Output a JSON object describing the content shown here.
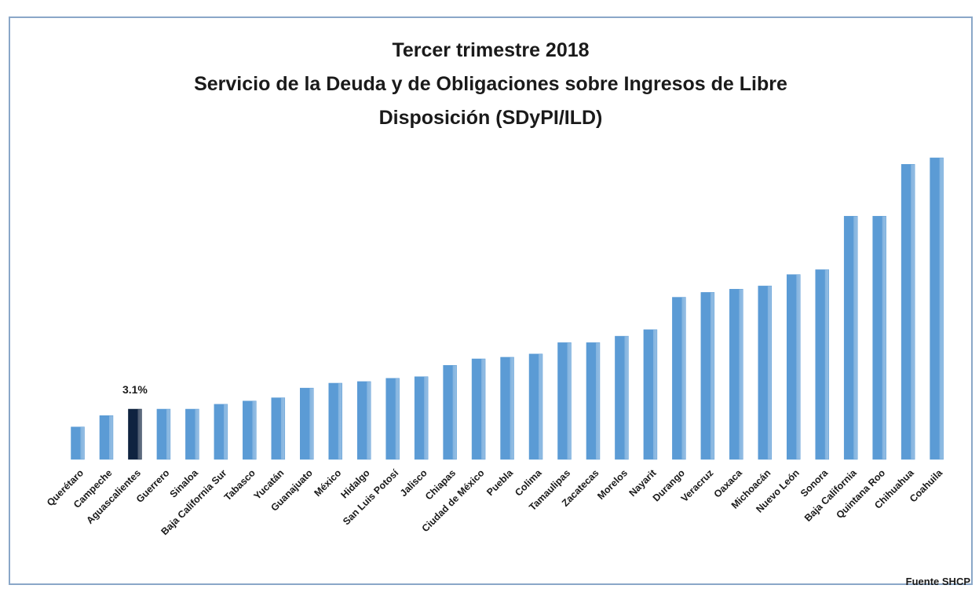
{
  "chart_data": {
    "type": "bar",
    "title": [
      "Tercer trimestre 2018",
      "Servicio de la Deuda y de Obligaciones sobre Ingresos de Libre",
      "Disposición (SDyPI/ILD)"
    ],
    "categories": [
      "Querétaro",
      "Campeche",
      "Aguascalientes",
      "Guerrero",
      "Sinaloa",
      "Baja California Sur",
      "Tabasco",
      "Yucatán",
      "Guanajuato",
      "México",
      "Hidalgo",
      "San Luis Potosí",
      "Jalisco",
      "Chiapas",
      "Ciudad de México",
      "Puebla",
      "Colima",
      "Tamaulipas",
      "Zacatecas",
      "Morelos",
      "Nayarit",
      "Durango",
      "Veracruz",
      "Oaxaca",
      "Michoacán",
      "Nuevo León",
      "Sonora",
      "Baja California",
      "Quintana Roo",
      "Chihuahua",
      "Coahuila"
    ],
    "values": [
      2.0,
      2.7,
      3.1,
      3.1,
      3.1,
      3.4,
      3.6,
      3.8,
      4.4,
      4.7,
      4.8,
      5.0,
      5.1,
      5.8,
      6.2,
      6.3,
      6.5,
      7.2,
      7.2,
      7.6,
      8.0,
      10.0,
      10.3,
      10.5,
      10.7,
      11.4,
      11.7,
      15.0,
      15.0,
      18.2,
      18.6
    ],
    "value_labels": [
      null,
      null,
      "3.1%",
      null,
      null,
      null,
      null,
      null,
      null,
      null,
      null,
      null,
      null,
      null,
      null,
      null,
      null,
      null,
      null,
      null,
      null,
      null,
      null,
      null,
      null,
      null,
      null,
      null,
      null,
      null,
      null
    ],
    "colors": [
      "#5b9bd5",
      "#5b9bd5",
      "#0f2340",
      "#5b9bd5",
      "#5b9bd5",
      "#5b9bd5",
      "#5b9bd5",
      "#5b9bd5",
      "#5b9bd5",
      "#5b9bd5",
      "#5b9bd5",
      "#5b9bd5",
      "#5b9bd5",
      "#5b9bd5",
      "#5b9bd5",
      "#5b9bd5",
      "#5b9bd5",
      "#5b9bd5",
      "#5b9bd5",
      "#5b9bd5",
      "#5b9bd5",
      "#5b9bd5",
      "#5b9bd5",
      "#5b9bd5",
      "#5b9bd5",
      "#5b9bd5",
      "#5b9bd5",
      "#5b9bd5",
      "#5b9bd5",
      "#5b9bd5",
      "#5b9bd5"
    ],
    "source": "Fuente SHCP"
  }
}
